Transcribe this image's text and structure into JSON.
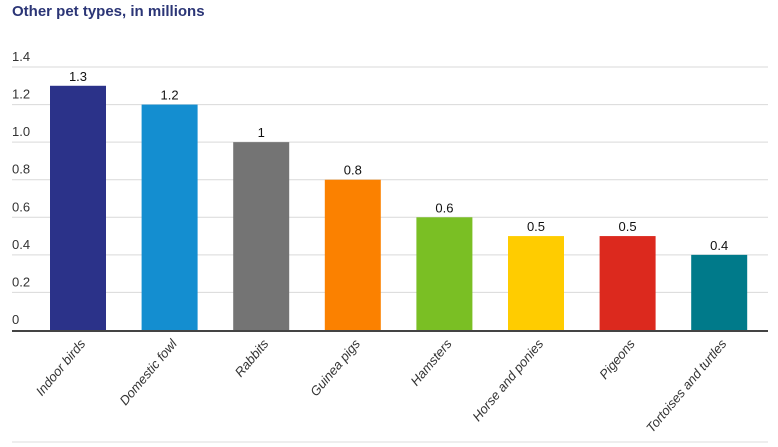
{
  "chart_data": {
    "type": "bar",
    "title": "Other pet types, in millions",
    "xlabel": "",
    "ylabel": "",
    "ylim": [
      0,
      1.4
    ],
    "yticks": [
      "0",
      "0.2",
      "0.4",
      "0.6",
      "0.8",
      "1.0",
      "1.2",
      "1.4"
    ],
    "grid": true,
    "categories": [
      "Indoor birds",
      "Domestic fowl",
      "Rabbits",
      "Guinea pigs",
      "Hamsters",
      "Horse and ponies",
      "Pigeons",
      "Tortoises and turtles"
    ],
    "values": [
      1.3,
      1.2,
      1,
      0.8,
      0.6,
      0.5,
      0.5,
      0.4
    ],
    "data_labels": [
      "1.3",
      "1.2",
      "1",
      "0.8",
      "0.6",
      "0.5",
      "0.5",
      "0.4"
    ],
    "colors": [
      "#2b3289",
      "#148ed0",
      "#747474",
      "#fb8100",
      "#7abf24",
      "#ffcc00",
      "#dc291e",
      "#007a8a"
    ]
  }
}
